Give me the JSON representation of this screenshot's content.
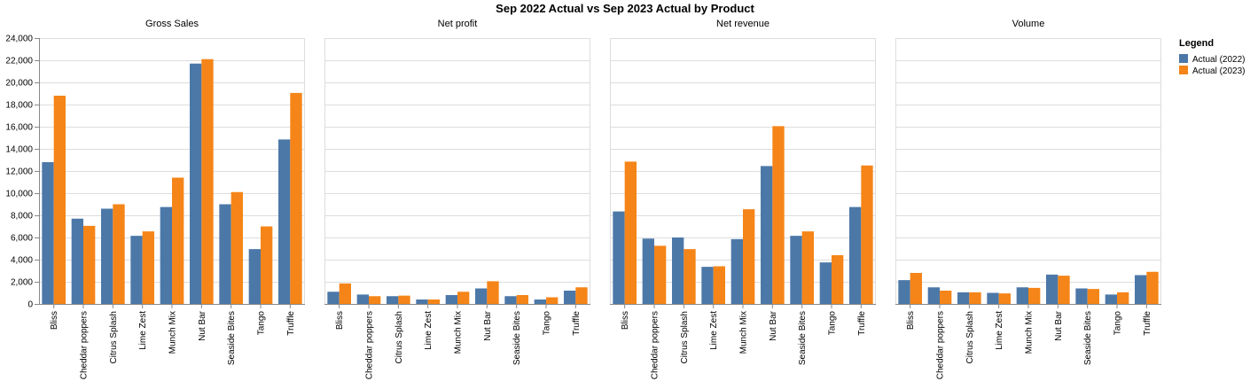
{
  "chart_data": {
    "type": "bar",
    "title": "Sep 2022 Actual vs Sep 2023 Actual by Product",
    "categories": [
      "Bliss",
      "Cheddar poppers",
      "Citrus Splash",
      "Lime Zest",
      "Munch Mix",
      "Nut Bar",
      "Seaside Bites",
      "Tango",
      "Truffle"
    ],
    "ylim": [
      0,
      24000
    ],
    "yticks": [
      "0",
      "2,000",
      "4,000",
      "6,000",
      "8,000",
      "10,000",
      "12,000",
      "14,000",
      "16,000",
      "18,000",
      "20,000",
      "22,000",
      "24,000"
    ],
    "grid": true,
    "legend": {
      "title": "Legend",
      "position": "top-right",
      "entries": [
        "Actual (2022)",
        "Actual (2023)"
      ]
    },
    "colors": [
      "#4c78a8",
      "#f58518"
    ],
    "panels": [
      {
        "title": "Gross Sales",
        "series": [
          {
            "name": "Actual (2022)",
            "values": [
              12800,
              7700,
              8600,
              6150,
              8750,
              21700,
              9000,
              4950,
              14850
            ]
          },
          {
            "name": "Actual (2023)",
            "values": [
              18800,
              7050,
              9000,
              6550,
              11400,
              22100,
              10100,
              7000,
              19050
            ]
          }
        ]
      },
      {
        "title": "Net profit",
        "series": [
          {
            "name": "Actual (2022)",
            "values": [
              1100,
              850,
              700,
              400,
              800,
              1400,
              700,
              400,
              1200
            ]
          },
          {
            "name": "Actual (2023)",
            "values": [
              1850,
              700,
              750,
              400,
              1100,
              2050,
              800,
              600,
              1500
            ]
          }
        ]
      },
      {
        "title": "Net revenue",
        "series": [
          {
            "name": "Actual (2022)",
            "values": [
              8350,
              5900,
              6000,
              3350,
              5850,
              12450,
              6150,
              3750,
              8750
            ]
          },
          {
            "name": "Actual (2023)",
            "values": [
              12850,
              5250,
              4950,
              3400,
              8550,
              16050,
              6550,
              4400,
              12500
            ]
          }
        ]
      },
      {
        "title": "Volume",
        "series": [
          {
            "name": "Actual (2022)",
            "values": [
              2150,
              1500,
              1050,
              1000,
              1500,
              2650,
              1400,
              850,
              2600
            ]
          },
          {
            "name": "Actual (2023)",
            "values": [
              2800,
              1200,
              1050,
              950,
              1450,
              2550,
              1350,
              1050,
              2900
            ]
          }
        ]
      }
    ]
  }
}
